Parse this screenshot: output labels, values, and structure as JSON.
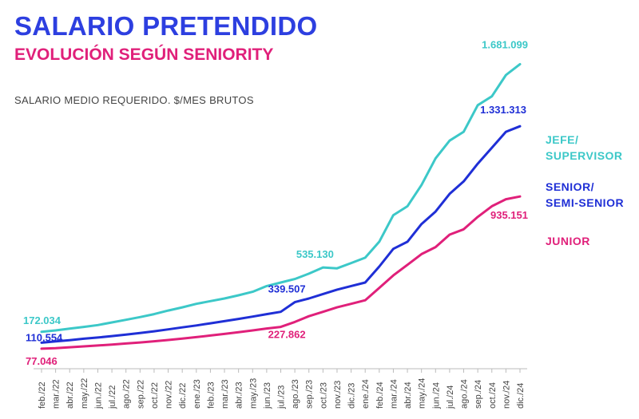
{
  "title": "SALARIO PRETENDIDO",
  "subtitle": "EVOLUCIÓN SEGÚN SENIORITY",
  "colors": {
    "jefe": "#3cc8c8",
    "senior": "#1f2fd6",
    "junior": "#e0207a",
    "title": "#2d3fe0",
    "subtitle": "#e0207a"
  },
  "chart_data": {
    "type": "line",
    "ylabel": "SALARIO MEDIO REQUERIDO. $/MES BRUTOS",
    "categories": [
      "feb./22",
      "mar./22",
      "abr./22",
      "may./22",
      "jun./22",
      "jul./22",
      "ago./22",
      "sep./22",
      "oct./22",
      "nov./22",
      "dic./22",
      "ene./23",
      "feb./23",
      "mar./23",
      "abr./23",
      "may./23",
      "jun./23",
      "jul./23",
      "ago./23",
      "sep./23",
      "oct./23",
      "nov./23",
      "dic./23",
      "ene./24",
      "feb./24",
      "mar./24",
      "abr./24",
      "may./24",
      "jun./24",
      "jul./24",
      "ago./24",
      "sep./24",
      "oct./24",
      "nov./24",
      "dic./24"
    ],
    "series": [
      {
        "key": "jefe",
        "name": "JEFE/ SUPERVISOR",
        "legend_lines": [
          "JEFE/",
          "SUPERVISOR"
        ],
        "values": [
          172034,
          180000,
          190000,
          200000,
          210000,
          225000,
          240000,
          255000,
          272000,
          292000,
          310000,
          330000,
          345000,
          360000,
          378000,
          398000,
          430000,
          450000,
          470000,
          500000,
          535130,
          530000,
          560000,
          590000,
          680000,
          830000,
          880000,
          1000000,
          1150000,
          1250000,
          1300000,
          1450000,
          1500000,
          1620000,
          1681099
        ],
        "labels": [
          {
            "index": 0,
            "text": "172.034"
          },
          {
            "index": 20,
            "text": "535.130"
          },
          {
            "index": 34,
            "text": "1.681.099"
          }
        ]
      },
      {
        "key": "senior",
        "name": "SENIOR/ SEMI-SENIOR",
        "legend_lines": [
          "SENIOR/",
          "SEMI-SENIOR"
        ],
        "values": [
          110554,
          118000,
          125000,
          133000,
          140000,
          148000,
          156000,
          165000,
          175000,
          186000,
          197000,
          208000,
          220000,
          232000,
          245000,
          258000,
          272000,
          285000,
          339507,
          360000,
          385000,
          410000,
          430000,
          450000,
          540000,
          640000,
          680000,
          780000,
          850000,
          950000,
          1020000,
          1120000,
          1210000,
          1300000,
          1331313
        ],
        "labels": [
          {
            "index": 0,
            "text": "110.554"
          },
          {
            "index": 18,
            "text": "339.507"
          },
          {
            "index": 34,
            "text": "1.331.313"
          }
        ]
      },
      {
        "key": "junior",
        "name": "JUNIOR",
        "legend_lines": [
          "JUNIOR"
        ],
        "values": [
          77046,
          80000,
          85000,
          90000,
          95000,
          100000,
          106000,
          112000,
          119000,
          126000,
          134000,
          142000,
          151000,
          160000,
          170000,
          180000,
          191000,
          200000,
          227862,
          260000,
          285000,
          310000,
          330000,
          350000,
          420000,
          490000,
          550000,
          610000,
          650000,
          720000,
          750000,
          820000,
          880000,
          920000,
          935151
        ],
        "labels": [
          {
            "index": 0,
            "text": "77.046"
          },
          {
            "index": 18,
            "text": "227.862"
          },
          {
            "index": 34,
            "text": "935.151"
          }
        ]
      }
    ],
    "ylim": [
      0,
      1800000
    ],
    "grid": false,
    "legend": "right"
  }
}
